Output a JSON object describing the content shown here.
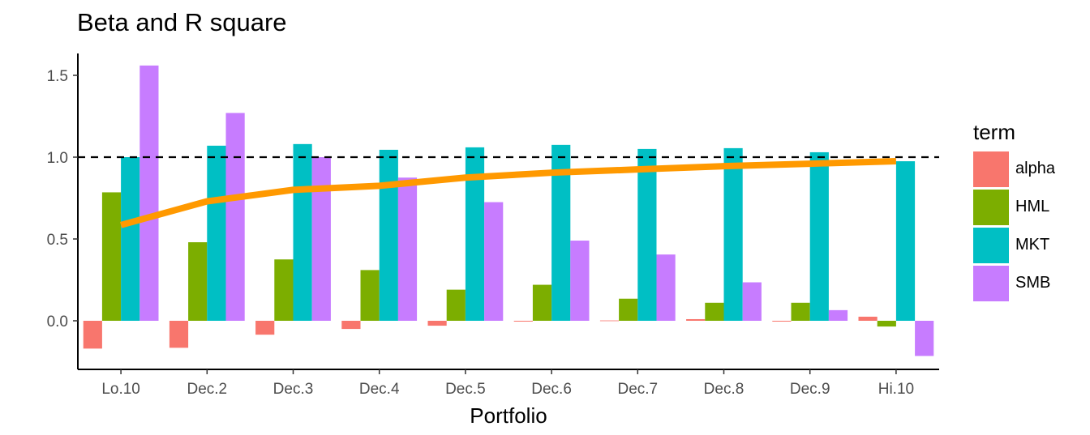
{
  "chart_data": {
    "type": "bar",
    "title": "Beta and R square",
    "xlabel": "Portfolio",
    "ylabel": "",
    "ylim": [
      -0.3,
      1.65
    ],
    "yticks": [
      0.0,
      0.5,
      1.0,
      1.5
    ],
    "ytick_labels": [
      "0.0",
      "0.5",
      "1.0",
      "1.5"
    ],
    "categories": [
      "Lo.10",
      "Dec.2",
      "Dec.3",
      "Dec.4",
      "Dec.5",
      "Dec.6",
      "Dec.7",
      "Dec.8",
      "Dec.9",
      "Hi.10"
    ],
    "series": [
      {
        "name": "alpha",
        "color": "#F8766D",
        "values": [
          -0.17,
          -0.165,
          -0.085,
          -0.05,
          -0.03,
          -0.005,
          0.002,
          0.01,
          -0.005,
          0.025
        ]
      },
      {
        "name": "HML",
        "color": "#7CAE00",
        "values": [
          0.785,
          0.48,
          0.375,
          0.31,
          0.19,
          0.22,
          0.135,
          0.11,
          0.11,
          -0.035
        ]
      },
      {
        "name": "MKT",
        "color": "#00BFC4",
        "values": [
          1.0,
          1.07,
          1.08,
          1.045,
          1.06,
          1.075,
          1.05,
          1.055,
          1.03,
          0.975
        ]
      },
      {
        "name": "SMB",
        "color": "#C77CFF",
        "values": [
          1.56,
          1.27,
          1.0,
          0.875,
          0.725,
          0.49,
          0.405,
          0.235,
          0.065,
          -0.215
        ]
      }
    ],
    "line": {
      "color": "#FF9900",
      "values": [
        0.585,
        0.73,
        0.8,
        0.825,
        0.875,
        0.905,
        0.925,
        0.945,
        0.96,
        0.975
      ]
    },
    "reference_line": {
      "y": 1.0,
      "style": "dashed"
    },
    "legend": {
      "title": "term",
      "position": "right"
    },
    "grid": false
  }
}
